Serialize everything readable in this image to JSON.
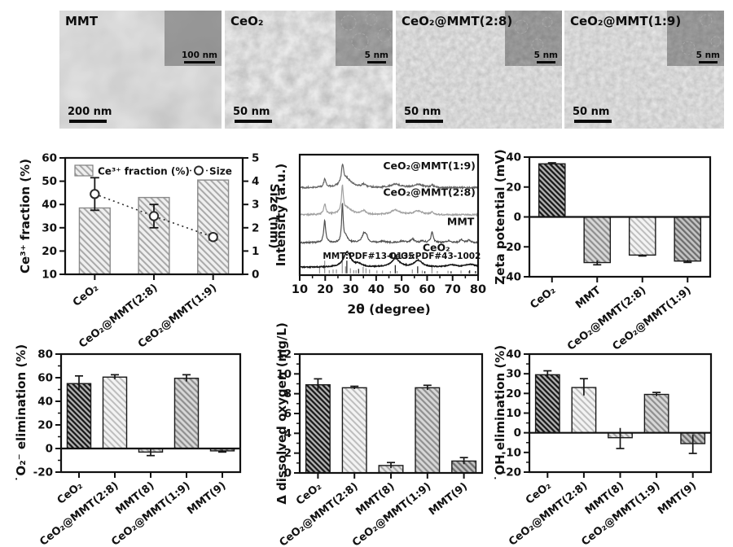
{
  "tem": {
    "panels": [
      {
        "label": "MMT",
        "scalebar": "200 nm",
        "inset_scalebar": "100 nm"
      },
      {
        "label": "CeO₂",
        "scalebar": "50 nm",
        "inset_scalebar": "5 nm"
      },
      {
        "label": "CeO₂@MMT(2:8)",
        "scalebar": "50 nm",
        "inset_scalebar": "5 nm"
      },
      {
        "label": "CeO₂@MMT(1:9)",
        "scalebar": "50 nm",
        "inset_scalebar": "5 nm"
      }
    ]
  },
  "hatch_styles": {
    "dark": {
      "bg": "#b0b0b0",
      "line": "#1b1b1b",
      "sp": 4.6,
      "lw": 2.3
    },
    "light": {
      "bg": "#f3f3f3",
      "line": "#bdbdbd",
      "sp": 5.4,
      "lw": 2.0
    },
    "medLight": {
      "bg": "#e6e6e6",
      "line": "#a6a6a6",
      "sp": 5.2,
      "lw": 2.1
    },
    "med": {
      "bg": "#d7d7d7",
      "line": "#8f8f8f",
      "sp": 5.2,
      "lw": 2.2
    },
    "medDark": {
      "bg": "#c4c4c4",
      "line": "#6e6e6e",
      "sp": 5.0,
      "lw": 2.3
    },
    "barA": {
      "bg": "#efefef",
      "line": "#a8a8a8",
      "sp": 5.6,
      "lw": 2.0
    }
  },
  "chart_data": [
    {
      "id": "c1",
      "name": "ce3-fraction-and-size",
      "type": "bar",
      "categories": [
        "CeO₂",
        "CeO₂@MMT(2:8)",
        "CeO₂@MMT(1:9)"
      ],
      "values": [
        38.5,
        43,
        50.5
      ],
      "styles": [
        "barA",
        "barA",
        "barA"
      ],
      "bar_outline": "#8a8a8a",
      "ylabel": "Ce³⁺ fraction (%)",
      "ylim": [
        10,
        60
      ],
      "yticks": [
        10,
        20,
        30,
        40,
        50,
        60
      ],
      "y2label": "Size (nm)",
      "y2lim": [
        0,
        5
      ],
      "y2ticks": [
        0,
        1,
        2,
        3,
        4,
        5
      ],
      "scatter": {
        "name": "Size",
        "values": [
          3.45,
          2.5,
          1.6
        ],
        "errors": [
          0.7,
          0.5,
          0.12
        ]
      },
      "legend": [
        "Ce³⁺ fraction (%)",
        "Size"
      ]
    },
    {
      "id": "c2",
      "name": "xrd-patterns",
      "type": "line",
      "xlabel": "2θ (degree)",
      "ylabel": "Intensity (a.u.)",
      "xlim": [
        10,
        80
      ],
      "xticks": [
        10,
        20,
        30,
        40,
        50,
        60,
        70,
        80
      ],
      "traces": [
        {
          "name": "CeO₂",
          "color": "#141414",
          "offset": 0.065,
          "noise": 0.008,
          "seed": 1,
          "label_x": 69,
          "label_dy": 0.135,
          "width": 1.5,
          "peaks": [
            [
              28.6,
              0.125,
              1.7
            ],
            [
              33.1,
              0.022,
              1.4
            ],
            [
              47.6,
              0.07,
              1.9
            ],
            [
              56.5,
              0.055,
              1.9
            ],
            [
              69.5,
              0.018,
              2.2
            ],
            [
              77.0,
              0.022,
              2.5
            ]
          ]
        },
        {
          "name": "MMT",
          "color": "#4f4f4f",
          "offset": 0.27,
          "noise": 0.012,
          "seed": 2,
          "label_x": 78.5,
          "label_dy": 0.145,
          "width": 1.2,
          "peaks": [
            [
              19.8,
              0.18,
              0.45
            ],
            [
              26.75,
              0.32,
              0.35
            ],
            [
              28.1,
              0.05,
              0.8
            ],
            [
              35.2,
              0.07,
              0.9
            ],
            [
              36.2,
              0.04,
              0.6
            ],
            [
              42.5,
              0.012,
              1
            ],
            [
              50.2,
              0.012,
              1
            ],
            [
              54.3,
              0.03,
              0.8
            ],
            [
              58.2,
              0.015,
              0.8
            ],
            [
              61.95,
              0.09,
              0.5
            ],
            [
              68.4,
              0.015,
              0.8
            ],
            [
              73.4,
              0.025,
              0.7
            ],
            [
              76.5,
              0.02,
              0.8
            ]
          ]
        },
        {
          "name": "CeO₂@MMT(2:8)",
          "color": "#a0a0a0",
          "offset": 0.5,
          "noise": 0.012,
          "seed": 3,
          "label_x": 79,
          "label_dy": 0.16,
          "width": 1.2,
          "peaks": [
            [
              19.85,
              0.09,
              0.5
            ],
            [
              26.75,
              0.21,
              0.4
            ],
            [
              28.4,
              0.055,
              2.6
            ],
            [
              35.1,
              0.03,
              1
            ],
            [
              47.6,
              0.038,
              2.2
            ],
            [
              56.5,
              0.03,
              2.2
            ],
            [
              61.95,
              0.022,
              0.7
            ]
          ]
        },
        {
          "name": "CeO₂@MMT(1:9)",
          "color": "#616161",
          "offset": 0.725,
          "noise": 0.013,
          "seed": 4,
          "label_x": 79,
          "label_dy": 0.155,
          "width": 1.2,
          "peaks": [
            [
              19.85,
              0.07,
              0.5
            ],
            [
              26.8,
              0.145,
              0.5
            ],
            [
              28.3,
              0.075,
              2.4
            ],
            [
              35.1,
              0.022,
              1
            ],
            [
              47.6,
              0.03,
              2.2
            ],
            [
              56.5,
              0.026,
              2.2
            ],
            [
              61.95,
              0.02,
              0.7
            ]
          ]
        }
      ],
      "ref_sticks": [
        {
          "label": "MMT:PDF#13-0135",
          "color": "#8f8f8f",
          "label_x": 37,
          "sticks": [
            [
              17.8,
              0.45
            ],
            [
              19.8,
              1
            ],
            [
              21.6,
              0.25
            ],
            [
              23.1,
              0.3
            ],
            [
              24.4,
              0.3
            ],
            [
              26.7,
              0.95
            ],
            [
              28.0,
              0.55
            ],
            [
              29.9,
              0.4
            ],
            [
              31.2,
              0.25
            ],
            [
              32.1,
              0.25
            ],
            [
              34.9,
              0.5
            ],
            [
              36.0,
              0.4
            ],
            [
              37.4,
              0.3
            ],
            [
              40.3,
              0.22
            ],
            [
              42.5,
              0.22
            ],
            [
              45.6,
              0.18
            ],
            [
              48.2,
              0.18
            ],
            [
              54.2,
              0.3
            ],
            [
              58.1,
              0.22
            ],
            [
              61.9,
              0.55
            ],
            [
              64.0,
              0.18
            ],
            [
              68.2,
              0.2
            ],
            [
              73.3,
              0.22
            ],
            [
              76.4,
              0.18
            ]
          ]
        },
        {
          "label": "CeO₂:PDF#43-1002",
          "color": "#161616",
          "label_x": 63,
          "sticks": [
            [
              28.5,
              1
            ],
            [
              33.1,
              0.35
            ],
            [
              47.5,
              0.65
            ],
            [
              56.3,
              0.55
            ],
            [
              59.1,
              0.16
            ],
            [
              69.4,
              0.16
            ],
            [
              76.7,
              0.24
            ],
            [
              79.0,
              0.18
            ]
          ]
        }
      ]
    },
    {
      "id": "c3",
      "name": "zeta-potential",
      "type": "bar",
      "categories": [
        "CeO₂",
        "MMT",
        "CeO₂@MMT(2:8)",
        "CeO₂@MMT(1:9)"
      ],
      "values": [
        35.5,
        -30.5,
        -25.5,
        -29.5
      ],
      "errors": [
        0.7,
        1.5,
        0.6,
        0.9
      ],
      "styles": [
        "dark",
        "med",
        "light",
        "medDark"
      ],
      "bar_outline": "#1a1a1a",
      "ylabel": "Zeta potential (mV)",
      "ylim": [
        -40,
        40
      ],
      "yticks": [
        -40,
        -20,
        0,
        20,
        40
      ]
    },
    {
      "id": "c4",
      "name": "superoxide-elimination",
      "type": "bar",
      "categories": [
        "CeO₂",
        "CeO₂@MMT(2:8)",
        "MMT(8)",
        "CeO₂@MMT(1:9)",
        "MMT(9)"
      ],
      "values": [
        55,
        60.5,
        -3,
        59.5,
        -2
      ],
      "errors": [
        6.5,
        2,
        3,
        3,
        1
      ],
      "styles": [
        "dark",
        "light",
        "medLight",
        "med",
        "medDark"
      ],
      "bar_outline": "#1a1a1a",
      "ylabel": "˙O₂⁻ elimination (%)",
      "ylim": [
        -20,
        80
      ],
      "yticks": [
        -20,
        0,
        20,
        40,
        60,
        80
      ]
    },
    {
      "id": "c5",
      "name": "delta-dissolved-oxygen",
      "type": "bar",
      "categories": [
        "CeO₂",
        "CeO₂@MMT(2:8)",
        "MMT(8)",
        "CeO₂@MMT(1:9)",
        "MMT(9)"
      ],
      "values": [
        8.9,
        8.6,
        0.75,
        8.6,
        1.2
      ],
      "errors": [
        0.6,
        0.15,
        0.3,
        0.25,
        0.35
      ],
      "styles": [
        "dark",
        "light",
        "medLight",
        "med",
        "medDark"
      ],
      "bar_outline": "#1a1a1a",
      "ylabel": "Δ dissolved oxygen (mg/L)",
      "ylim": [
        0,
        12
      ],
      "yticks": [
        0,
        2,
        4,
        6,
        8,
        10,
        12
      ]
    },
    {
      "id": "c6",
      "name": "hydroxyl-elimination",
      "type": "bar",
      "categories": [
        "CeO₂",
        "CeO₂@MMT(2:8)",
        "MMT(8)",
        "CeO₂@MMT(1:9)",
        "MMT(9)"
      ],
      "values": [
        29.5,
        23,
        -2.5,
        19.5,
        -5.5
      ],
      "errors": [
        2,
        4.5,
        5.5,
        1,
        5
      ],
      "styles": [
        "dark",
        "light",
        "medLight",
        "med",
        "medDark"
      ],
      "bar_outline": "#1a1a1a",
      "ylabel": "˙OH elimination (%)",
      "ylim": [
        -20,
        40
      ],
      "yticks": [
        -20,
        -10,
        0,
        10,
        20,
        30,
        40
      ]
    }
  ]
}
